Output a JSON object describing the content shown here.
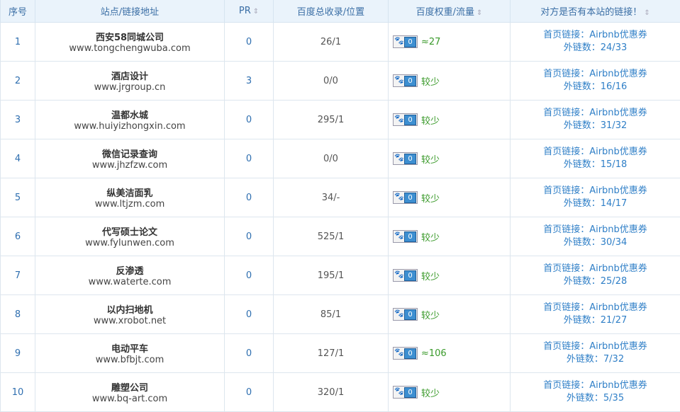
{
  "headers": [
    "序号",
    "站点/链接地址",
    "PR",
    "百度总收录/位置",
    "百度权重/流量",
    "对方是否有本站的链接！"
  ],
  "sort_icon": "⇕",
  "rows": [
    {
      "idx": "1",
      "name": "西安58同城公司",
      "url": "www.tongchengwuba.com",
      "pr": "0",
      "index": "26/1",
      "weight": "0",
      "traffic": "≈27",
      "home_link": "首页链接：Airbnb优惠券",
      "outlinks": "外链数：24/33"
    },
    {
      "idx": "2",
      "name": "酒店设计",
      "url": "www.jrgroup.cn",
      "pr": "3",
      "index": "0/0",
      "weight": "0",
      "traffic": "较少",
      "home_link": "首页链接：Airbnb优惠券",
      "outlinks": "外链数：16/16"
    },
    {
      "idx": "3",
      "name": "温都水城",
      "url": "www.huiyizhongxin.com",
      "pr": "0",
      "index": "295/1",
      "weight": "0",
      "traffic": "较少",
      "home_link": "首页链接：Airbnb优惠券",
      "outlinks": "外链数：31/32"
    },
    {
      "idx": "4",
      "name": "微信记录查询",
      "url": "www.jhzfzw.com",
      "pr": "0",
      "index": "0/0",
      "weight": "0",
      "traffic": "较少",
      "home_link": "首页链接：Airbnb优惠券",
      "outlinks": "外链数：15/18"
    },
    {
      "idx": "5",
      "name": "纵美洁面乳",
      "url": "www.ltjzm.com",
      "pr": "0",
      "index": "34/-",
      "weight": "0",
      "traffic": "较少",
      "home_link": "首页链接：Airbnb优惠券",
      "outlinks": "外链数：14/17"
    },
    {
      "idx": "6",
      "name": "代写硕士论文",
      "url": "www.fylunwen.com",
      "pr": "0",
      "index": "525/1",
      "weight": "0",
      "traffic": "较少",
      "home_link": "首页链接：Airbnb优惠券",
      "outlinks": "外链数：30/34"
    },
    {
      "idx": "7",
      "name": "反渗透",
      "url": "www.waterte.com",
      "pr": "0",
      "index": "195/1",
      "weight": "0",
      "traffic": "较少",
      "home_link": "首页链接：Airbnb优惠券",
      "outlinks": "外链数：25/28"
    },
    {
      "idx": "8",
      "name": "以内扫地机",
      "url": "www.xrobot.net",
      "pr": "0",
      "index": "85/1",
      "weight": "0",
      "traffic": "较少",
      "home_link": "首页链接：Airbnb优惠券",
      "outlinks": "外链数：21/27"
    },
    {
      "idx": "9",
      "name": "电动平车",
      "url": "www.bfbjt.com",
      "pr": "0",
      "index": "127/1",
      "weight": "0",
      "traffic": "≈106",
      "home_link": "首页链接：Airbnb优惠券",
      "outlinks": "外链数：7/32"
    },
    {
      "idx": "10",
      "name": "雕塑公司",
      "url": "www.bq-art.com",
      "pr": "0",
      "index": "320/1",
      "weight": "0",
      "traffic": "较少",
      "home_link": "首页链接：Airbnb优惠券",
      "outlinks": "外链数：5/35"
    }
  ]
}
